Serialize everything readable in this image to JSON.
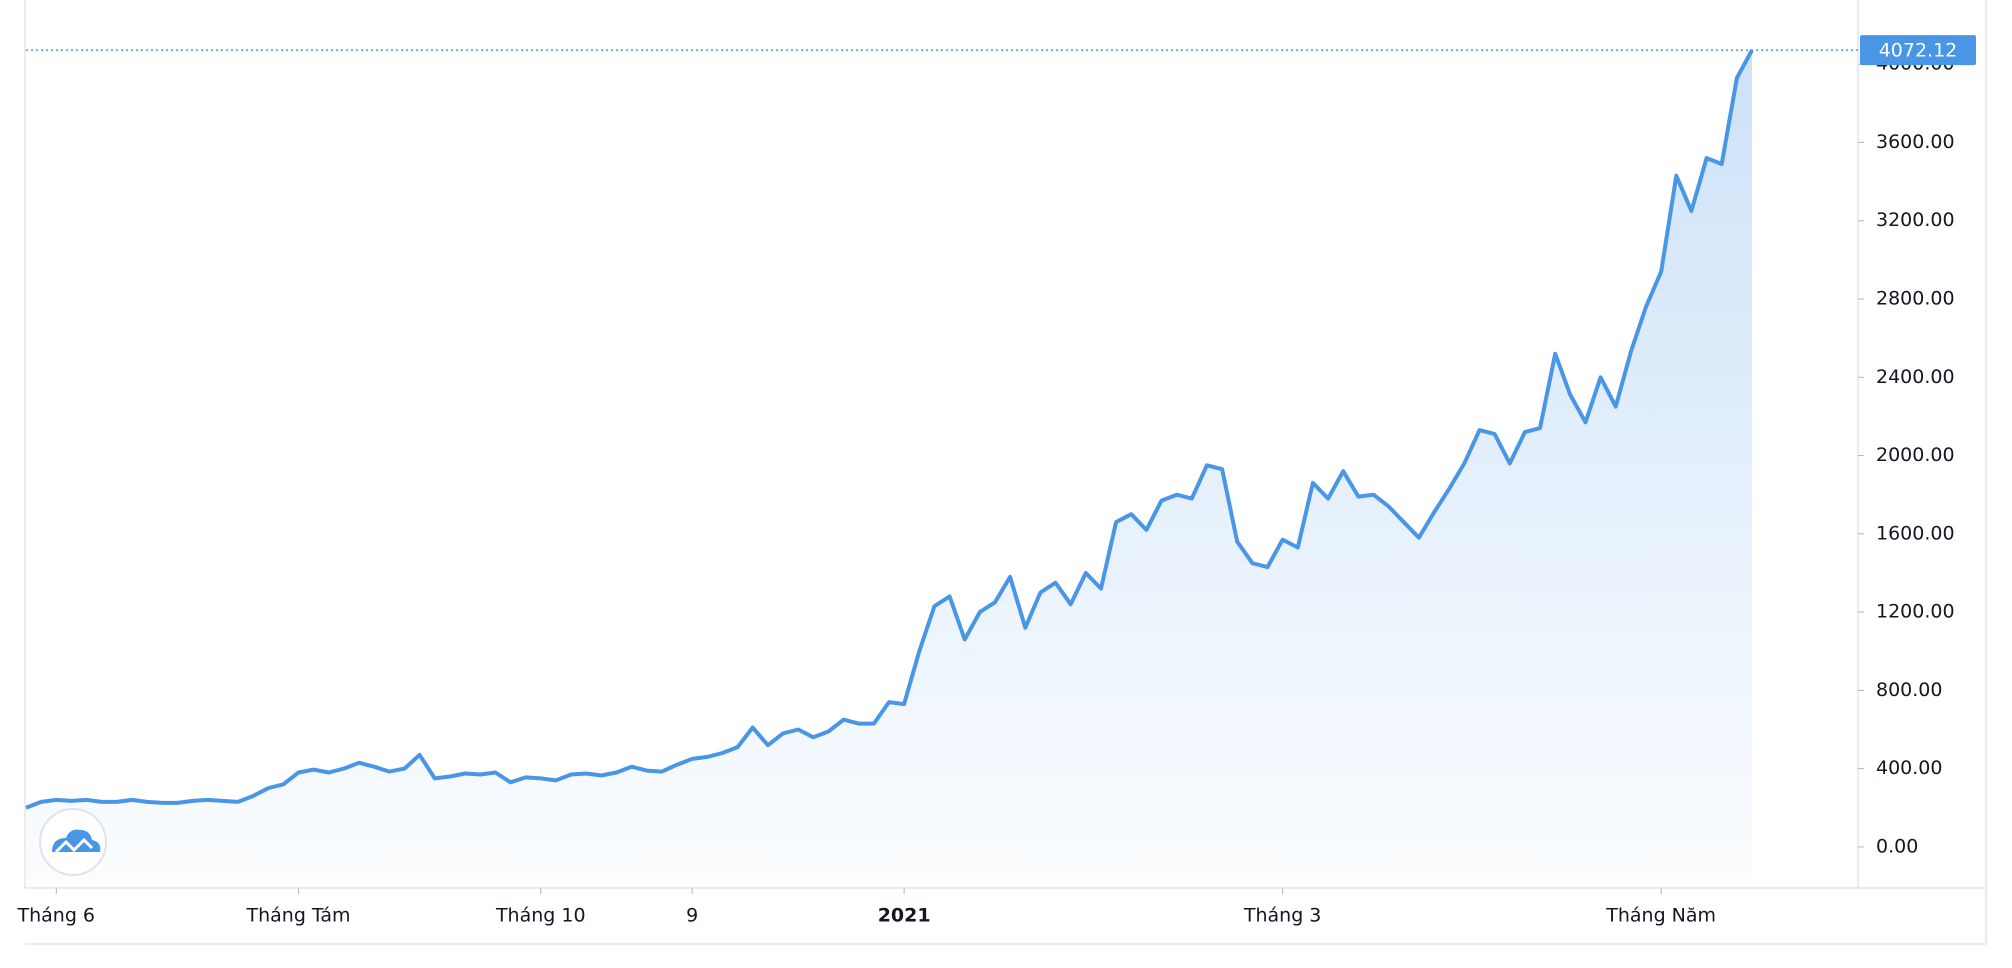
{
  "chart_data": {
    "type": "area",
    "categories": [
      null,
      null,
      "Tháng 6",
      null,
      null,
      null,
      null,
      null,
      null,
      null,
      null,
      null,
      null,
      null,
      null,
      null,
      null,
      null,
      "Tháng Tám",
      null,
      null,
      null,
      null,
      null,
      null,
      null,
      null,
      null,
      null,
      null,
      null,
      null,
      null,
      null,
      "Tháng 10",
      null,
      null,
      null,
      null,
      null,
      null,
      null,
      null,
      null,
      "9",
      null,
      null,
      null,
      null,
      null,
      null,
      null,
      null,
      null,
      null,
      null,
      null,
      null,
      "2021",
      null,
      null,
      null,
      null,
      null,
      null,
      null,
      null,
      null,
      null,
      null,
      null,
      null,
      null,
      null,
      null,
      null,
      null,
      null,
      null,
      null,
      null,
      null,
      null,
      "Tháng 3",
      null,
      null,
      null,
      null,
      null,
      null,
      null,
      null,
      null,
      null,
      null,
      null,
      null,
      null,
      null,
      null,
      null,
      null,
      null,
      null,
      null,
      null,
      null,
      null,
      "Tháng Năm",
      null,
      null,
      null,
      null,
      null,
      null
    ],
    "values": [
      200,
      230,
      240,
      235,
      240,
      230,
      230,
      240,
      230,
      225,
      225,
      235,
      240,
      235,
      230,
      260,
      300,
      320,
      380,
      395,
      380,
      400,
      430,
      410,
      385,
      400,
      470,
      350,
      360,
      375,
      370,
      380,
      330,
      355,
      350,
      340,
      370,
      375,
      365,
      380,
      410,
      390,
      385,
      420,
      450,
      460,
      480,
      510,
      610,
      520,
      580,
      600,
      560,
      590,
      650,
      630,
      630,
      740,
      730,
      1000,
      1230,
      1280,
      1060,
      1200,
      1250,
      1380,
      1120,
      1300,
      1350,
      1240,
      1400,
      1320,
      1660,
      1700,
      1620,
      1770,
      1800,
      1780,
      1950,
      1930,
      1560,
      1450,
      1430,
      1570,
      1530,
      1860,
      1780,
      1920,
      1790,
      1800,
      1740,
      1660,
      1580,
      1710,
      1830,
      1960,
      2130,
      2110,
      1960,
      2120,
      2140,
      2520,
      2310,
      2170,
      2400,
      2250,
      2530,
      2760,
      2940,
      3430,
      3250,
      3520,
      3490,
      3930,
      4072.12
    ],
    "color": "#4a96e6",
    "ylim": [
      -210,
      4328
    ],
    "yticks": [
      {
        "value": 0,
        "label": "0.00"
      },
      {
        "value": 400,
        "label": "400.00"
      },
      {
        "value": 800,
        "label": "800.00"
      },
      {
        "value": 1200,
        "label": "1200.00"
      },
      {
        "value": 1600,
        "label": "1600.00"
      },
      {
        "value": 2000,
        "label": "2000.00"
      },
      {
        "value": 2400,
        "label": "2400.00"
      },
      {
        "value": 2800,
        "label": "2800.00"
      },
      {
        "value": 3200,
        "label": "3200.00"
      },
      {
        "value": 3600,
        "label": "3600.00"
      },
      {
        "value": 4000,
        "label": "4000.00"
      }
    ],
    "price_line": {
      "value": 4072.12,
      "label": "4072.12"
    }
  }
}
